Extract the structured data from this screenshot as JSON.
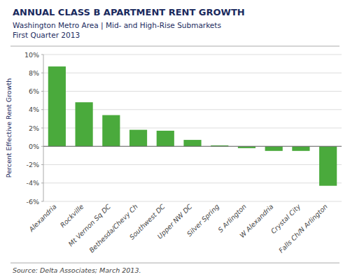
{
  "chart_data": {
    "type": "bar",
    "title": "ANNUAL CLASS B APARTMENT RENT GROWTH",
    "subtitle": [
      "Washington Metro Area | Mid- and High-Rise Submarkets",
      "First Quarter 2013"
    ],
    "source": "Source: Delta Associates; March 2013.",
    "ylabel": "Percent Effective Rent Growth",
    "categories": [
      "Alexandria",
      "Rockville",
      "Mt Vernon Sq DC",
      "Bethesda/Chevy Ch",
      "Southwest DC",
      "Upper NW DC",
      "Silver Spring",
      "S Arlington",
      "W Alexandria",
      "Crystal City",
      "Falls Ch/N Arlington"
    ],
    "values": [
      8.7,
      4.8,
      3.4,
      1.8,
      1.7,
      0.7,
      0.1,
      -0.2,
      -0.5,
      -0.5,
      -4.3
    ],
    "color": "#4aaa3c",
    "ylim": [
      -6,
      10
    ],
    "yticks": [
      {
        "value": -6,
        "label": "-6%"
      },
      {
        "value": -4,
        "label": "-4%"
      },
      {
        "value": -2,
        "label": "-2%"
      },
      {
        "value": 0,
        "label": "0%"
      },
      {
        "value": 2,
        "label": "2%"
      },
      {
        "value": 4,
        "label": "4%"
      },
      {
        "value": 6,
        "label": "6%"
      },
      {
        "value": 8,
        "label": "8%"
      },
      {
        "value": 10,
        "label": "10%"
      }
    ],
    "grid": true
  }
}
